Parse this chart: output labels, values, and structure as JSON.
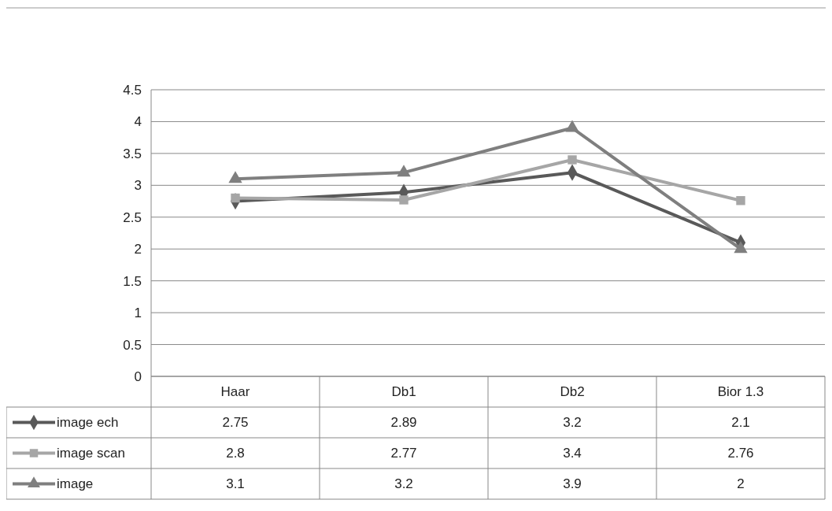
{
  "chart_data": {
    "type": "line",
    "categories": [
      "Haar",
      "Db1",
      "Db2",
      "Bior 1.3"
    ],
    "series": [
      {
        "name": "image ech",
        "color": "#595959",
        "marker": "diamond",
        "values": [
          2.75,
          2.89,
          3.2,
          2.1
        ]
      },
      {
        "name": "image scan",
        "color": "#a6a6a6",
        "marker": "square",
        "values": [
          2.8,
          2.77,
          3.4,
          2.76
        ]
      },
      {
        "name": "image",
        "color": "#7f7f7f",
        "marker": "triangle",
        "values": [
          3.1,
          3.2,
          3.9,
          2
        ]
      }
    ],
    "ylim": [
      0,
      4.5
    ],
    "yticks": [
      0,
      0.5,
      1,
      1.5,
      2,
      2.5,
      3,
      3.5,
      4,
      4.5
    ],
    "grid": "y",
    "legend": "bottom",
    "data_labels": true,
    "line_style": "solid"
  }
}
